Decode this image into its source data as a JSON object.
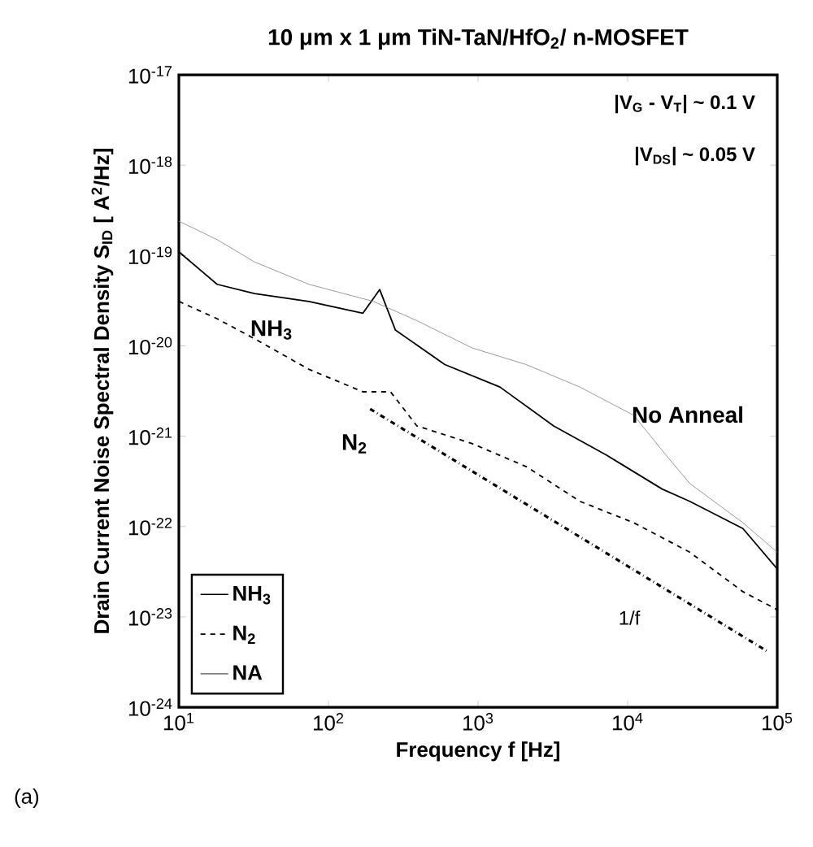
{
  "chart_data": {
    "type": "line",
    "title": "10 μm x 1 μm TiN-TaN/HfO$_{2}$/ n-MOSFET",
    "xlabel": "Frequency f [Hz]",
    "ylabel": "Drain Current Noise Spectral Density S$_{ID}$ [ A$^{2}$/Hz]",
    "log": "xy",
    "xlim": [
      10,
      100000
    ],
    "ylim": [
      1e-24,
      1e-17
    ],
    "xticks": [
      {
        "value": 10,
        "label": "10$^{1}$"
      },
      {
        "value": 100,
        "label": "10$^{2}$"
      },
      {
        "value": 1000,
        "label": "10$^{3}$"
      },
      {
        "value": 10000,
        "label": "10$^{4}$"
      },
      {
        "value": 100000,
        "label": "10$^{5}$"
      }
    ],
    "yticks": [
      {
        "value": 1e-24,
        "label": "10$^{-24}$"
      },
      {
        "value": 1e-23,
        "label": "10$^{-23}$"
      },
      {
        "value": 1e-22,
        "label": "10$^{-22}$"
      },
      {
        "value": 1e-21,
        "label": "10$^{-21}$"
      },
      {
        "value": 1e-20,
        "label": "10$^{-20}$"
      },
      {
        "value": 1e-19,
        "label": "10$^{-19}$"
      },
      {
        "value": 1e-18,
        "label": "10$^{-18}$"
      },
      {
        "value": 1e-17,
        "label": "10$^{-17}$"
      }
    ],
    "legend": "bottom left",
    "series": [
      {
        "name": "NH$_{3}$",
        "color": "#000000",
        "line_style": "solid",
        "x": [
          10,
          18,
          32,
          74,
          170,
          220,
          280,
          600,
          1400,
          3200,
          7200,
          17000,
          26000,
          59000,
          100000
        ],
        "values": [
          1.1e-19,
          4.8e-20,
          3.8e-20,
          3.1e-20,
          2.3e-20,
          4.2e-20,
          1.5e-20,
          6.2e-21,
          3.5e-21,
          1.3e-21,
          6.2e-22,
          2.6e-22,
          1.9e-22,
          9.5e-23,
          3.4e-23
        ]
      },
      {
        "name": "N$_{2}$",
        "color": "#000000",
        "line_style": "dashed",
        "x": [
          10,
          18,
          32,
          74,
          170,
          260,
          390,
          910,
          2100,
          4800,
          11000,
          26000,
          59000,
          100000
        ],
        "values": [
          3.1e-20,
          2e-20,
          1.2e-20,
          5.5e-21,
          3.1e-21,
          3.1e-21,
          1.3e-21,
          8.3e-22,
          4.6e-22,
          1.9e-22,
          1.1e-22,
          5.2e-23,
          1.9e-23,
          1.2e-23
        ]
      },
      {
        "name": "NA",
        "color": "#808080",
        "line_style": "solid",
        "x": [
          10,
          18,
          32,
          74,
          200,
          390,
          910,
          2100,
          4800,
          11000,
          18000,
          26000,
          59000,
          100000
        ],
        "values": [
          2.4e-19,
          1.5e-19,
          8.5e-20,
          4.8e-20,
          3.1e-20,
          1.9e-20,
          9.5e-21,
          6.2e-21,
          3.5e-21,
          1.7e-21,
          6.2e-22,
          3e-22,
          1.1e-22,
          5.2e-23
        ]
      },
      {
        "type": "line",
        "color": "#000000",
        "line_style": "dashdot",
        "x": [
          190,
          85000
        ],
        "values": [
          2e-21,
          4.2e-24
        ]
      }
    ],
    "annotations": [
      "NH$_{3}$",
      "N$_{2}$",
      "No Anneal",
      "1/f",
      "|V$_{G}$ - V$_{T}$| ~ 0.1 V",
      "|V$_{DS}$| ~ 0.05 V",
      "(a)"
    ]
  }
}
